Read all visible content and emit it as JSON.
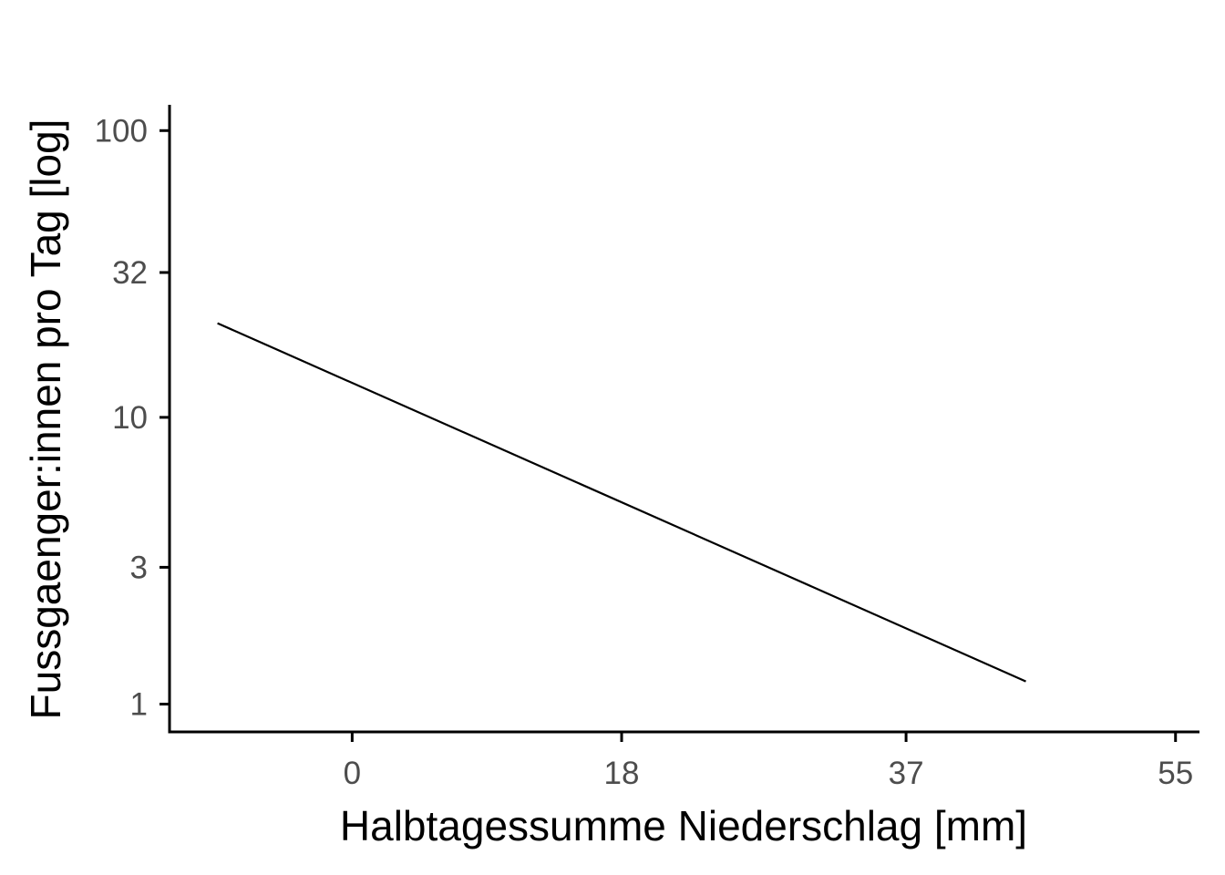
{
  "chart_data": {
    "type": "line",
    "title": "",
    "xlabel": "Halbtagessumme Niederschlag [mm]",
    "ylabel": "Fussgaenger:innen pro Tag [log]",
    "y_scale": "log",
    "grid": false,
    "xlim": [
      -12.2,
      56.6
    ],
    "ylim": [
      0.8,
      123
    ],
    "x_ticks": [
      {
        "value": 0,
        "label": "0"
      },
      {
        "value": 18,
        "label": "18"
      },
      {
        "value": 37,
        "label": "37"
      },
      {
        "value": 55,
        "label": "55"
      }
    ],
    "y_ticks": [
      {
        "value": 1,
        "label": "1"
      },
      {
        "value": 3,
        "label": "3"
      },
      {
        "value": 10,
        "label": "10"
      },
      {
        "value": 32,
        "label": "32"
      },
      {
        "value": 100,
        "label": "100"
      }
    ],
    "series": [
      {
        "color": "#000000",
        "x": [
          -9,
          45
        ],
        "y": [
          21.3,
          1.2
        ]
      }
    ]
  }
}
